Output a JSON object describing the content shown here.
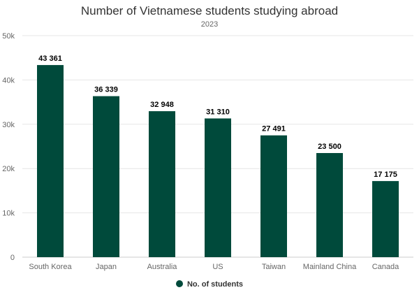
{
  "chart_data": {
    "type": "bar",
    "title": "Number of Vietnamese students studying abroad",
    "subtitle": "2023",
    "categories": [
      "South Korea",
      "Japan",
      "Australia",
      "US",
      "Taiwan",
      "Mainland China",
      "Canada"
    ],
    "series": [
      {
        "name": "No. of students",
        "values": [
          43361,
          36339,
          32948,
          31310,
          27491,
          23500,
          17175
        ],
        "labels": [
          "43 361",
          "36 339",
          "32 948",
          "31 310",
          "27 491",
          "23 500",
          "17 175"
        ],
        "color": "#004a3b"
      }
    ],
    "ylim": [
      0,
      50000
    ],
    "yticks": [
      0,
      10000,
      20000,
      30000,
      40000,
      50000
    ],
    "ytick_labels": [
      "0",
      "10k",
      "20k",
      "30k",
      "40k",
      "50k"
    ],
    "grid": true,
    "legend_position": "bottom-center"
  }
}
